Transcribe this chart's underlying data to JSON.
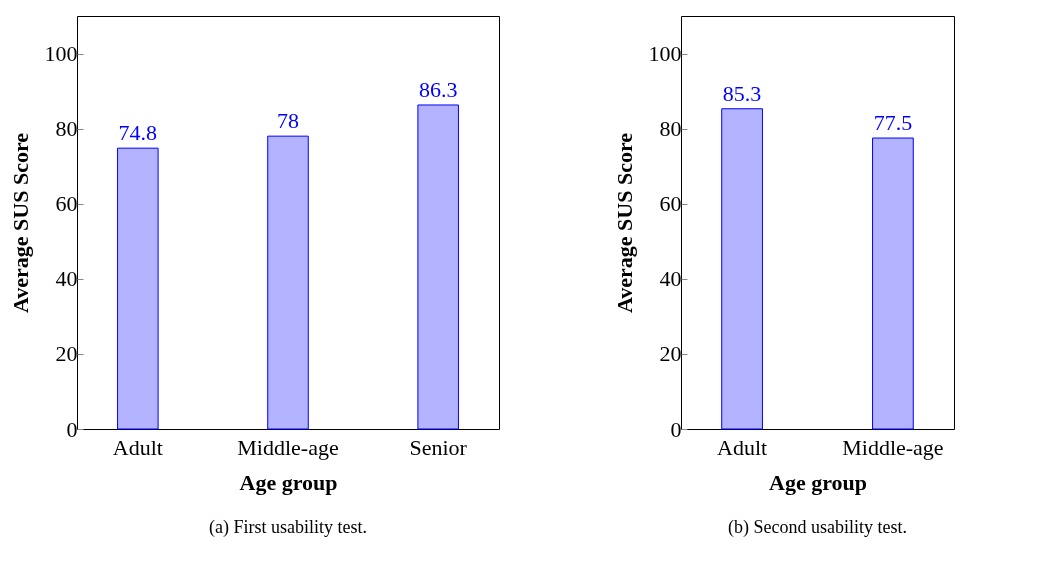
{
  "chart_data": [
    {
      "type": "bar",
      "categories": [
        "Adult",
        "Middle-age",
        "Senior"
      ],
      "values": [
        74.8,
        78,
        86.3
      ],
      "color": "#b3b3ff",
      "data_labels": true,
      "ylabel": "Average SUS Score",
      "xlabel": "Age group",
      "ylim": [
        0,
        110
      ],
      "yticks": [
        0,
        20,
        40,
        60,
        80,
        100
      ],
      "grid": false,
      "annotations": [
        "(a) First usability test."
      ]
    },
    {
      "type": "bar",
      "categories": [
        "Adult",
        "Middle-age"
      ],
      "values": [
        85.3,
        77.5
      ],
      "color": "#b3b3ff",
      "data_labels": true,
      "ylabel": "Average SUS Score",
      "xlabel": "Age group",
      "ylim": [
        0,
        110
      ],
      "yticks": [
        0,
        20,
        40,
        60,
        80,
        100
      ],
      "grid": false,
      "annotations": [
        "(b) Second usability test."
      ]
    }
  ]
}
